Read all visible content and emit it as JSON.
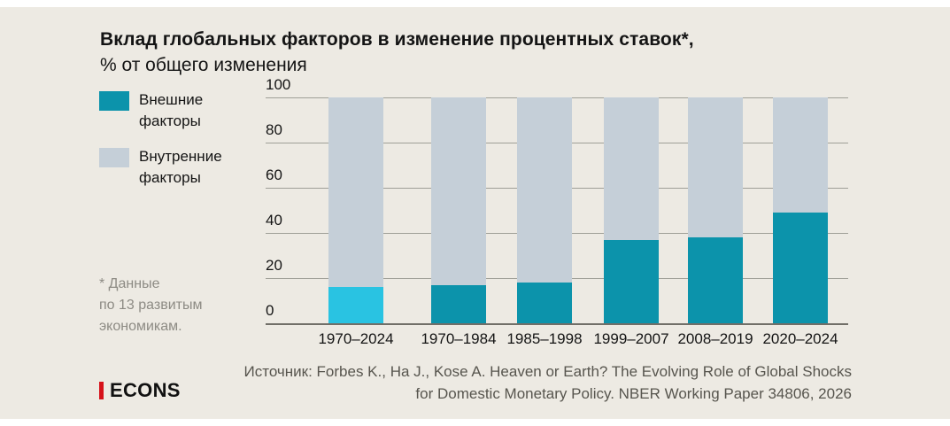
{
  "title": {
    "line1": "Вклад глобальных факторов в изменение процентных ставок*,",
    "line2": "% от общего изменения"
  },
  "legend": {
    "items": [
      {
        "label": "Внешние\nфакторы",
        "color": "#0c93ab"
      },
      {
        "label": "Внутренние\nфакторы",
        "color": "#c5cfd8"
      }
    ]
  },
  "footnote": {
    "text": "* Данные\nпо 13 развитым\nэкономикам."
  },
  "logo": {
    "text": "ECONS",
    "accent_color": "#d6121a"
  },
  "source": {
    "line1": "Источник: Forbes K., Ha J., Kose A. Heaven or Earth? The Evolving Role of Global Shocks",
    "line2": "for Domestic Monetary Policy. NBER Working Paper 34806, 2026"
  },
  "colors": {
    "card_background": "#edeae3",
    "external": "#0c93ab",
    "external_highlight_first_bar": "#29c3e2",
    "internal": "#c5cfd8",
    "grid_line": "#9f9f97",
    "axis_line": "#716f68",
    "text": "#141414",
    "muted_text": "#8d8b84",
    "source_text": "#57554e",
    "logo_red": "#d6121a"
  },
  "chart_data": {
    "type": "bar",
    "stacked": true,
    "title": "Вклад глобальных факторов в изменение процентных ставок*, % от общего изменения",
    "categories": [
      "1970–2024",
      "1970–1984",
      "1985–1998",
      "1999–2007",
      "2008–2019",
      "2020–2024"
    ],
    "series": [
      {
        "name": "Внешние факторы",
        "values": [
          16,
          17,
          18,
          37,
          38,
          49
        ],
        "color": "#0c93ab"
      },
      {
        "name": "Внутренние факторы",
        "values": [
          84,
          83,
          82,
          63,
          62,
          51
        ],
        "color": "#c5cfd8"
      }
    ],
    "first_bar_external_color": "#29c3e2",
    "ylim": [
      0,
      100
    ],
    "yticks": [
      0,
      20,
      40,
      60,
      80,
      100
    ],
    "grid": true,
    "legend_position": "left",
    "xlabel": "",
    "ylabel": "% от общего изменения"
  }
}
